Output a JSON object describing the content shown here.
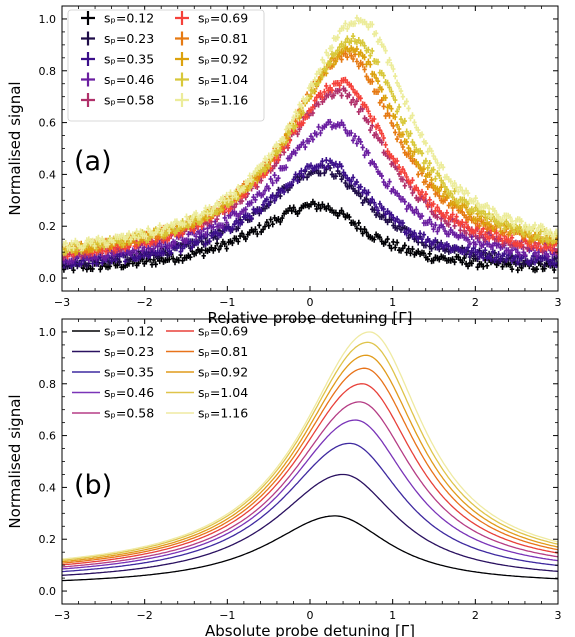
{
  "chart_data": [
    {
      "panel_label": "(a)",
      "type": "scatter",
      "xlabel": "Relative probe detuning [Γ]",
      "ylabel": "Normalised signal",
      "xlim": [
        -3,
        3
      ],
      "ylim": [
        -0.05,
        1.05
      ],
      "xticks": [
        "−3",
        "−2",
        "−1",
        "0",
        "1",
        "2",
        "3"
      ],
      "yticks": [
        "0.0",
        "0.2",
        "0.4",
        "0.6",
        "0.8",
        "1.0"
      ],
      "error_bars": true,
      "legend_position": "top-left",
      "legend_columns": 2,
      "series": [
        {
          "name": "sₚ=0.12",
          "color": "#000004",
          "peak": 0.28,
          "center": 0.08
        },
        {
          "name": "sₚ=0.23",
          "color": "#1f0c48",
          "peak": 0.42,
          "center": 0.15
        },
        {
          "name": "sₚ=0.35",
          "color": "#3b0f8a",
          "peak": 0.44,
          "center": 0.2
        },
        {
          "name": "sₚ=0.46",
          "color": "#6a1ea0",
          "peak": 0.59,
          "center": 0.3
        },
        {
          "name": "sₚ=0.58",
          "color": "#b0306a",
          "peak": 0.72,
          "center": 0.35
        },
        {
          "name": "sₚ=0.69",
          "color": "#f5413a",
          "peak": 0.75,
          "center": 0.38
        },
        {
          "name": "sₚ=0.81",
          "color": "#e67a13",
          "peak": 0.86,
          "center": 0.45
        },
        {
          "name": "sₚ=0.92",
          "color": "#dca20e",
          "peak": 0.88,
          "center": 0.5
        },
        {
          "name": "sₚ=1.04",
          "color": "#d8c83a",
          "peak": 0.92,
          "center": 0.55
        },
        {
          "name": "sₚ=1.16",
          "color": "#ecec9a",
          "peak": 1.0,
          "center": 0.6
        }
      ]
    },
    {
      "panel_label": "(b)",
      "type": "line",
      "xlabel": "Absolute probe detuning [Γ]",
      "ylabel": "Normalised signal",
      "xlim": [
        -3,
        3
      ],
      "ylim": [
        -0.05,
        1.05
      ],
      "xticks": [
        "−3",
        "−2",
        "−1",
        "0",
        "1",
        "2",
        "3"
      ],
      "yticks": [
        "0.0",
        "0.2",
        "0.4",
        "0.6",
        "0.8",
        "1.0"
      ],
      "legend_position": "top-left",
      "legend_columns": 2,
      "series": [
        {
          "name": "sₚ=0.12",
          "color": "#000004",
          "peak": 0.29,
          "center": 0.3
        },
        {
          "name": "sₚ=0.23",
          "color": "#2a1160",
          "peak": 0.45,
          "center": 0.4
        },
        {
          "name": "sₚ=0.35",
          "color": "#3f2aa0",
          "peak": 0.57,
          "center": 0.48
        },
        {
          "name": "sₚ=0.46",
          "color": "#7a34b8",
          "peak": 0.66,
          "center": 0.55
        },
        {
          "name": "sₚ=0.58",
          "color": "#b53d85",
          "peak": 0.73,
          "center": 0.6
        },
        {
          "name": "sₚ=0.69",
          "color": "#e8413a",
          "peak": 0.8,
          "center": 0.63
        },
        {
          "name": "sₚ=0.81",
          "color": "#e8731a",
          "peak": 0.86,
          "center": 0.66
        },
        {
          "name": "sₚ=0.92",
          "color": "#e19b1b",
          "peak": 0.91,
          "center": 0.68
        },
        {
          "name": "sₚ=1.04",
          "color": "#dfc44a",
          "peak": 0.96,
          "center": 0.7
        },
        {
          "name": "sₚ=1.16",
          "color": "#efeaa2",
          "peak": 1.0,
          "center": 0.72
        }
      ]
    }
  ]
}
